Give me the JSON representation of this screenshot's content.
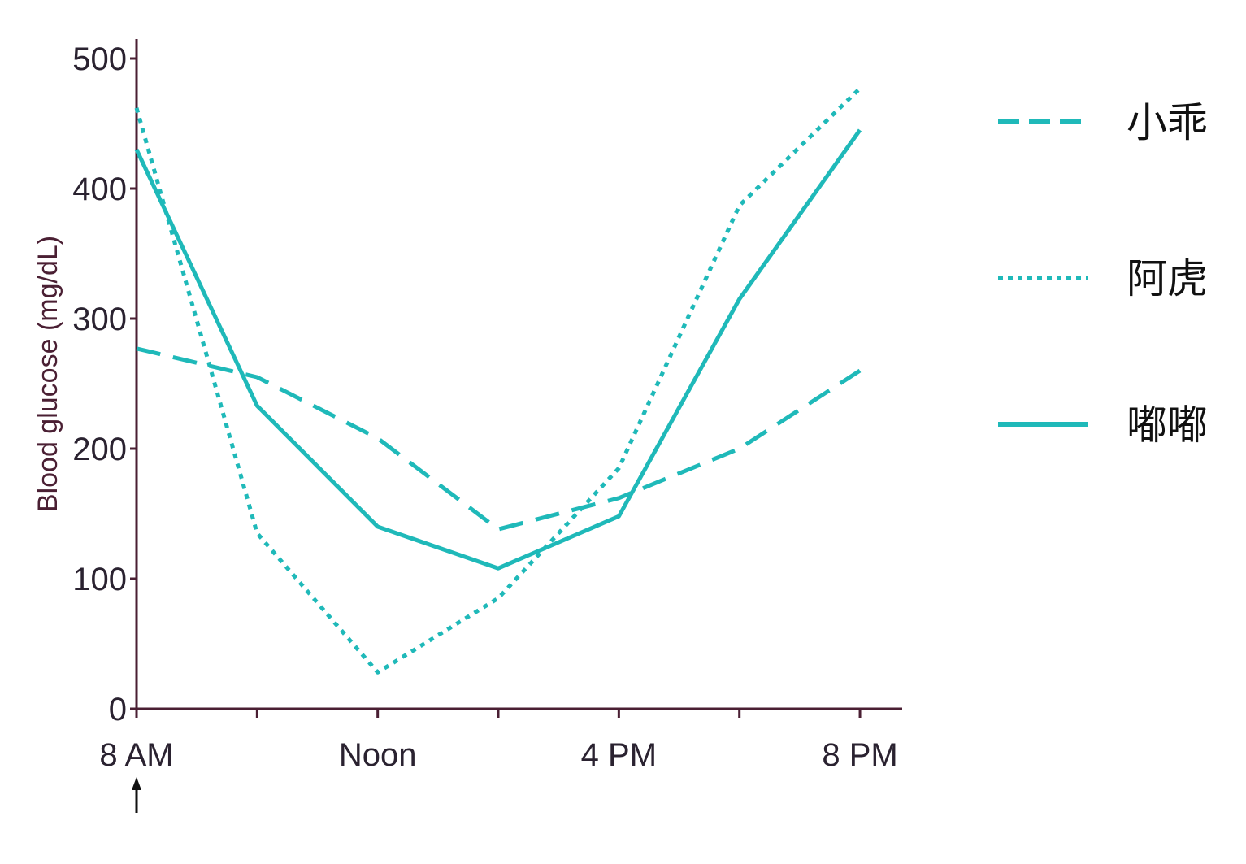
{
  "chart_data": {
    "type": "line",
    "title": "",
    "xlabel": "",
    "ylabel": "Blood glucose (mg/dL)",
    "x_hours": [
      8,
      10,
      12,
      14,
      16,
      18,
      20
    ],
    "x_ticks": [
      {
        "hour": 8,
        "label": "8 AM"
      },
      {
        "hour": 10,
        "label": ""
      },
      {
        "hour": 12,
        "label": "Noon"
      },
      {
        "hour": 14,
        "label": ""
      },
      {
        "hour": 16,
        "label": "4 PM"
      },
      {
        "hour": 18,
        "label": ""
      },
      {
        "hour": 20,
        "label": "8 PM"
      }
    ],
    "xlim": [
      8,
      20.7
    ],
    "ylim": [
      0,
      520
    ],
    "y_ticks": [
      0,
      100,
      200,
      300,
      400,
      500
    ],
    "grid": false,
    "legend_position": "right",
    "start_marker": {
      "hour": 8,
      "symbol": "↑"
    },
    "series": [
      {
        "name": "小乖",
        "style": "dashed",
        "color": "#1fb9b9",
        "values": [
          277,
          255,
          208,
          138,
          162,
          200,
          260
        ]
      },
      {
        "name": "阿虎",
        "style": "dotted",
        "color": "#1fb9b9",
        "values": [
          462,
          135,
          28,
          85,
          185,
          387,
          477
        ]
      },
      {
        "name": "嘟嘟",
        "style": "solid",
        "color": "#1fb9b9",
        "values": [
          430,
          233,
          140,
          108,
          148,
          315,
          445
        ]
      }
    ]
  }
}
